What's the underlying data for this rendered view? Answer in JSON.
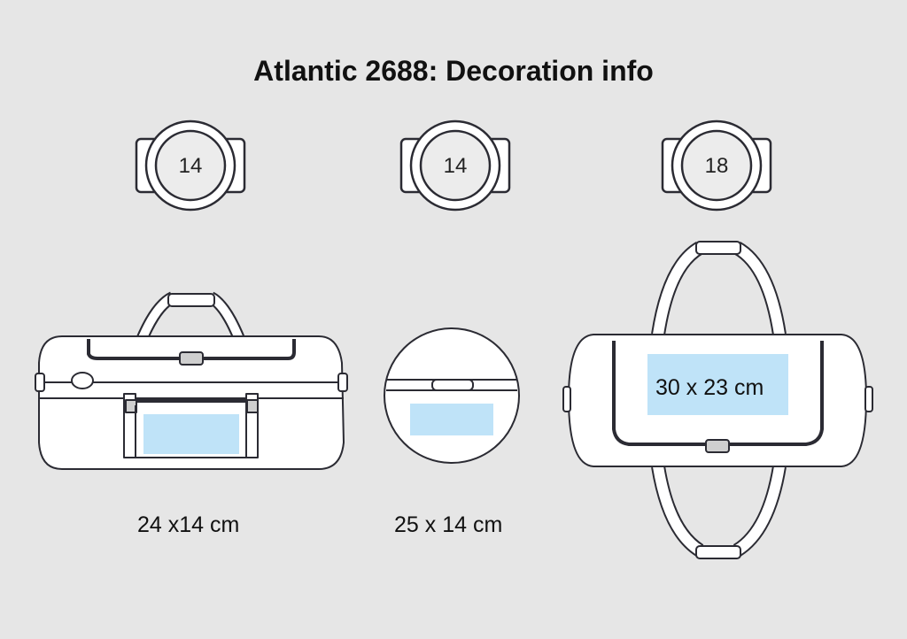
{
  "title": "Atlantic 2688: Decoration info",
  "positions": [
    {
      "code": "14",
      "size_label": "24 x14 cm",
      "view": "side"
    },
    {
      "code": "14",
      "size_label": "25 x 14 cm",
      "view": "end"
    },
    {
      "code": "18",
      "size_label": "30 x 23 cm",
      "view": "top"
    }
  ],
  "colors": {
    "background": "#e6e6e6",
    "outline": "#2b2b33",
    "print_area": "#bfe3f8",
    "badge_fill": "#ececec"
  }
}
